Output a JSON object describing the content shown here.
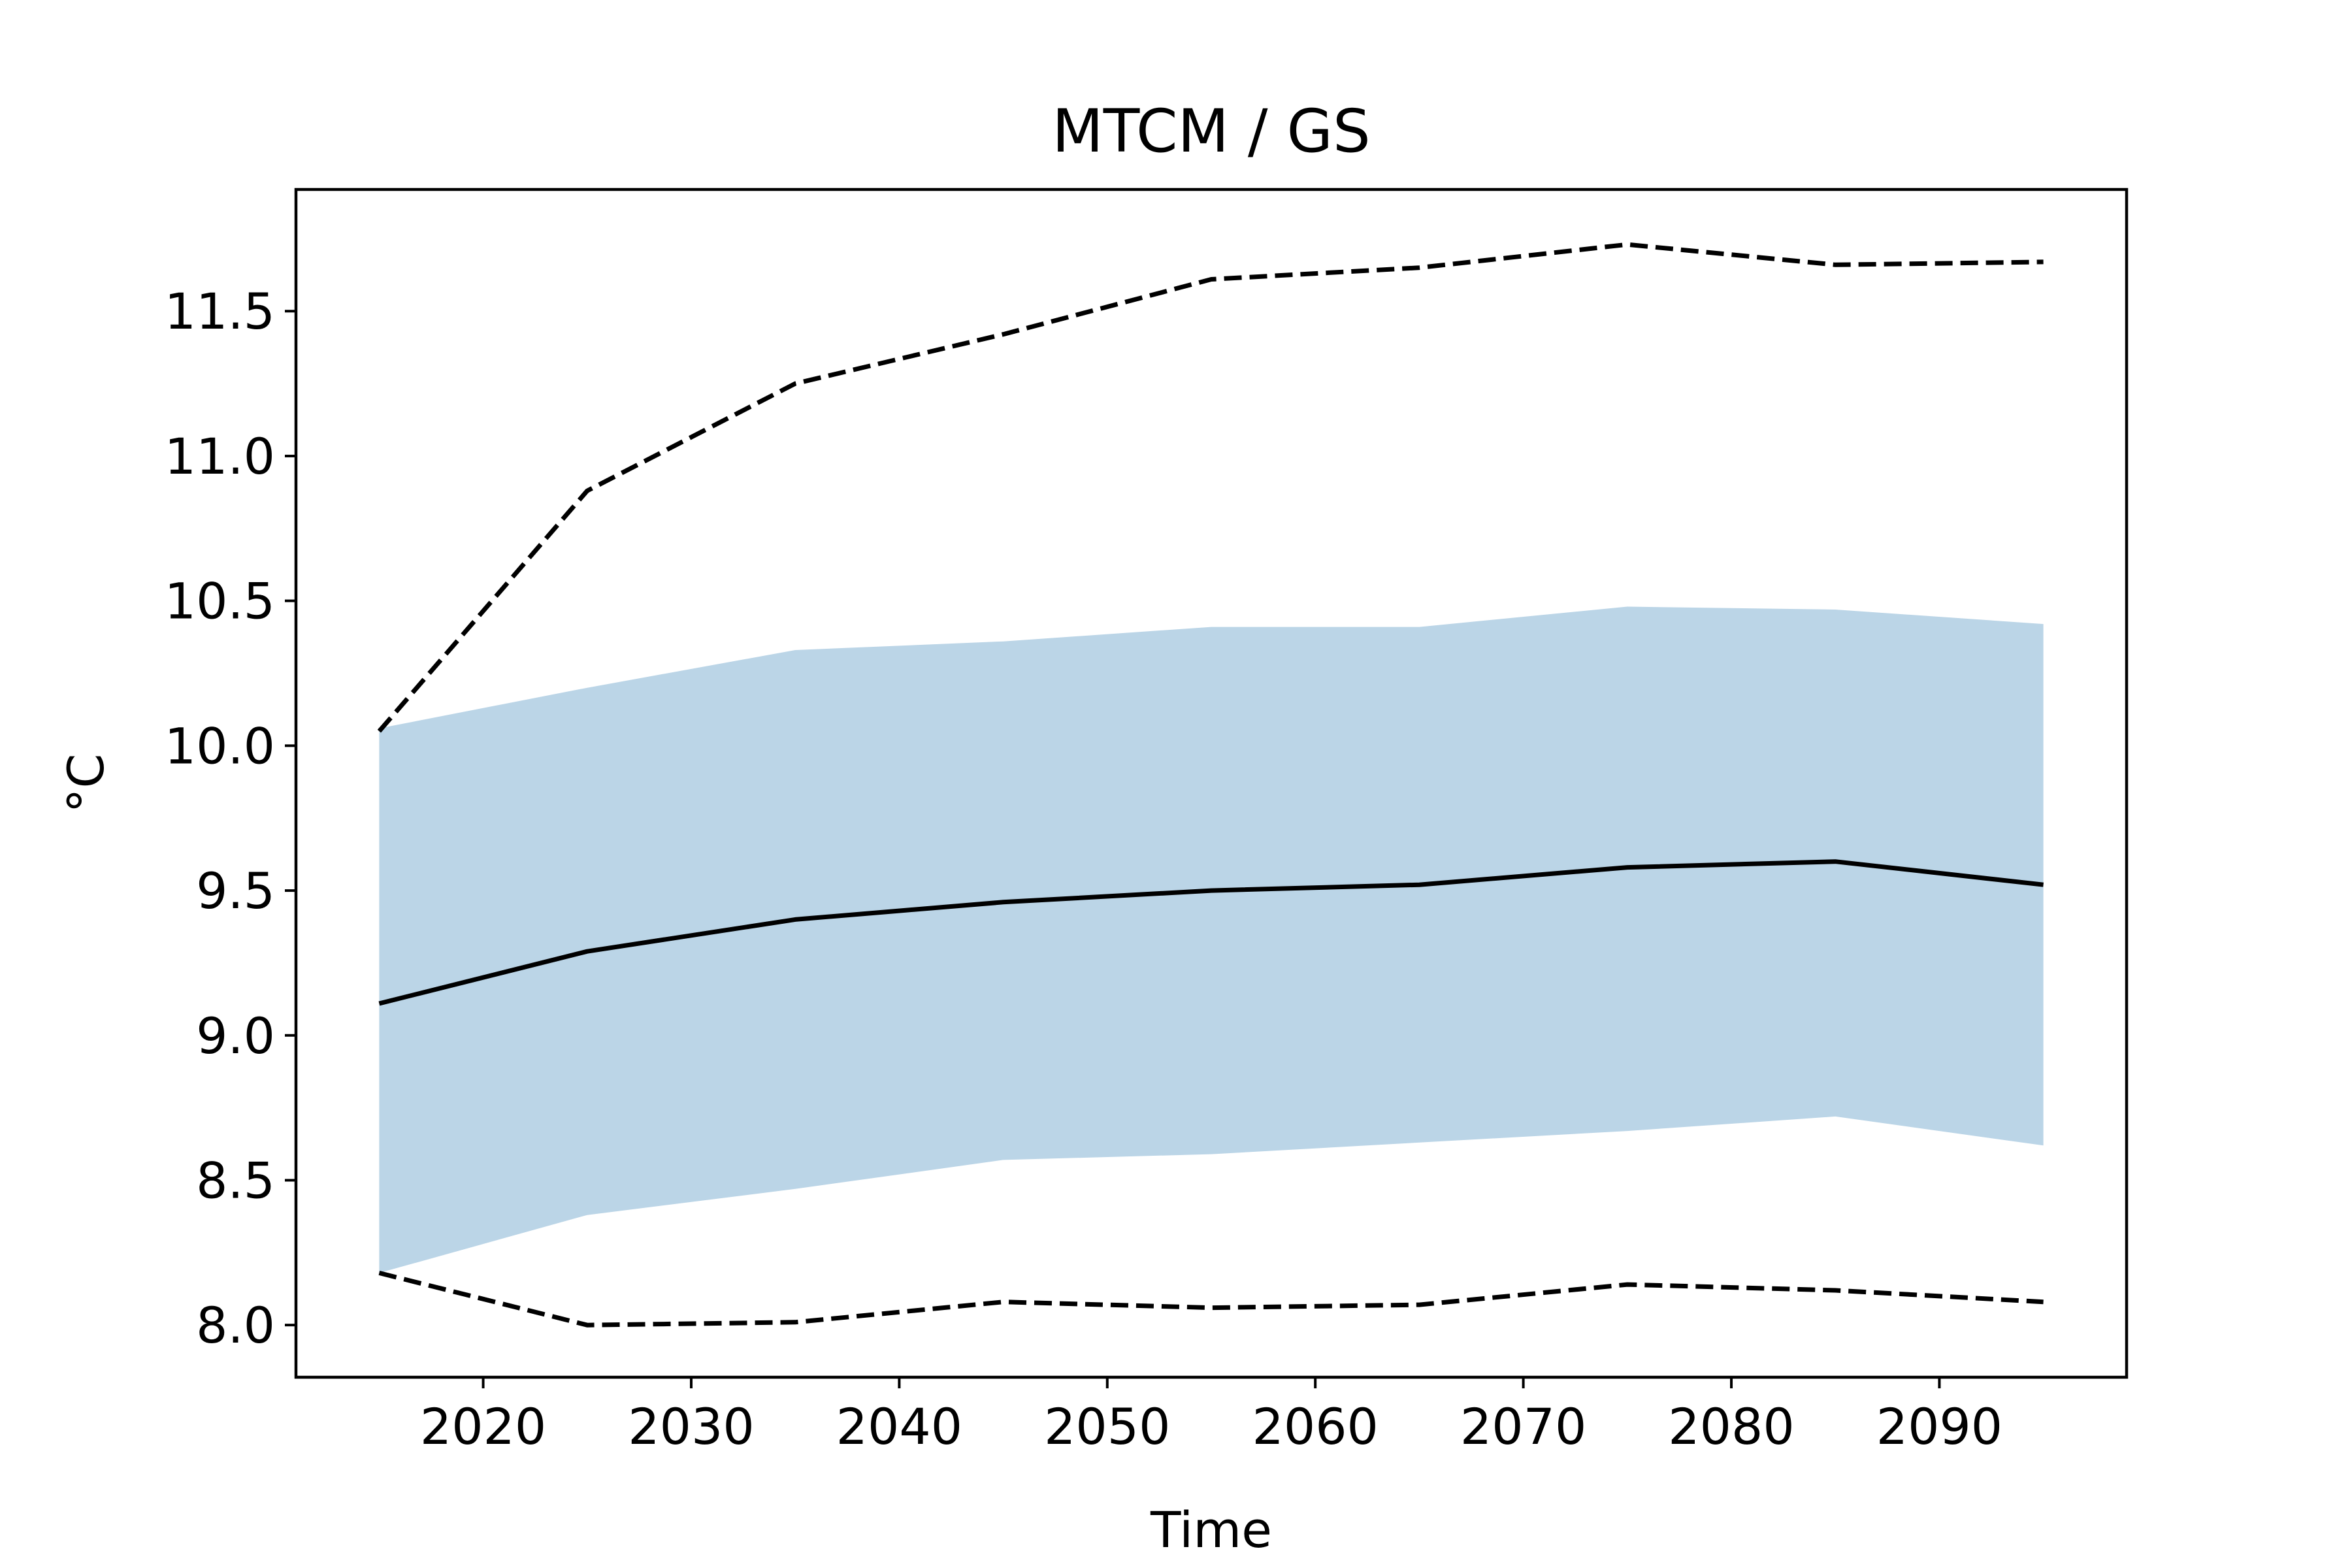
{
  "chart_data": {
    "type": "line",
    "title": "MTCM / GS",
    "xlabel": "Time",
    "ylabel": "°C",
    "xlim": [
      2011,
      2099
    ],
    "ylim": [
      7.82,
      11.92
    ],
    "x_ticks": [
      2020,
      2030,
      2040,
      2050,
      2060,
      2070,
      2080,
      2090
    ],
    "y_ticks": [
      8.0,
      8.5,
      9.0,
      9.5,
      10.0,
      10.5,
      11.0,
      11.5
    ],
    "y_tick_labels": [
      "8.0",
      "8.5",
      "9.0",
      "9.5",
      "10.0",
      "10.5",
      "11.0",
      "11.5"
    ],
    "grid": false,
    "x": [
      2015,
      2025,
      2035,
      2045,
      2055,
      2065,
      2075,
      2085,
      2095
    ],
    "series": [
      {
        "role": "mean",
        "style": "solid",
        "color": "#000000",
        "values": [
          9.11,
          9.29,
          9.4,
          9.46,
          9.5,
          9.52,
          9.58,
          9.6,
          9.52
        ]
      },
      {
        "role": "max",
        "style": "dashed",
        "color": "#000000",
        "values": [
          10.05,
          10.88,
          11.25,
          11.42,
          11.61,
          11.65,
          11.73,
          11.66,
          11.67
        ]
      },
      {
        "role": "min",
        "style": "dashed",
        "color": "#000000",
        "values": [
          8.18,
          8.0,
          8.01,
          8.08,
          8.06,
          8.07,
          8.14,
          8.12,
          8.08
        ]
      }
    ],
    "band": {
      "color": "#bbd5e7",
      "upper": [
        10.06,
        10.2,
        10.33,
        10.36,
        10.41,
        10.41,
        10.48,
        10.47,
        10.42
      ],
      "lower": [
        8.18,
        8.38,
        8.47,
        8.57,
        8.59,
        8.63,
        8.67,
        8.72,
        8.62
      ]
    }
  }
}
